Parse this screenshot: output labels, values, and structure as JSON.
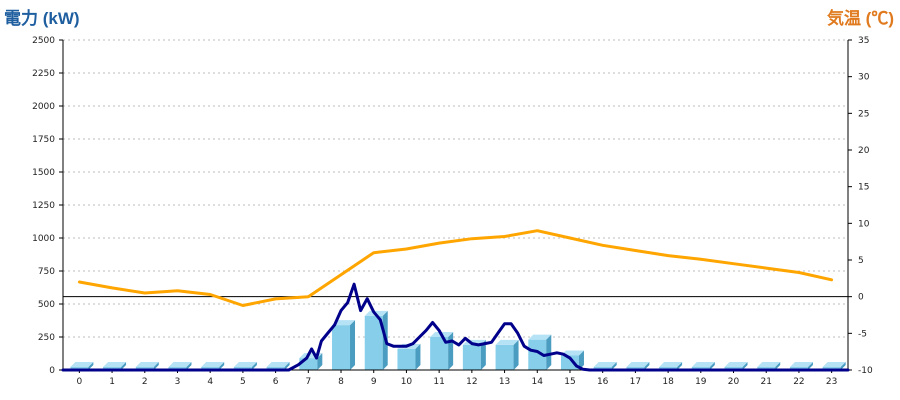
{
  "chart_data": {
    "type": "bar",
    "left_axis_label": "電力 (kW)",
    "right_axis_label": "気温 (℃)",
    "categories": [
      "0",
      "1",
      "2",
      "3",
      "4",
      "5",
      "6",
      "7",
      "8",
      "9",
      "10",
      "11",
      "12",
      "13",
      "14",
      "15",
      "16",
      "17",
      "18",
      "19",
      "20",
      "21",
      "22",
      "23"
    ],
    "ylim": [
      0,
      2500
    ],
    "yticks": [
      0,
      250,
      500,
      750,
      1000,
      1250,
      1500,
      1750,
      2000,
      2250,
      2500
    ],
    "y2lim": [
      -10,
      35
    ],
    "y2ticks": [
      -10,
      -5,
      0,
      5,
      10,
      15,
      20,
      25,
      30,
      35
    ],
    "grid": true,
    "colors": {
      "bar": "#87ceeb",
      "bar_side": "#4a9cc0",
      "bar_top": "#b5e2f5",
      "power_line": "#00008b",
      "temperature_line": "#ffa500",
      "zero_line": "#000000"
    },
    "series": [
      {
        "kind": "bar",
        "axis": "left",
        "values": [
          0,
          0,
          0,
          0,
          0,
          0,
          0,
          90,
          340,
          410,
          160,
          250,
          190,
          190,
          230,
          110,
          20,
          0,
          0,
          0,
          0,
          0,
          0,
          0
        ]
      },
      {
        "kind": "line",
        "axis": "left",
        "x": [
          6.4,
          6.7,
          6.95,
          7.1,
          7.25,
          7.4,
          7.6,
          7.8,
          8.0,
          8.2,
          8.4,
          8.6,
          8.8,
          9.0,
          9.2,
          9.4,
          9.6,
          9.8,
          10.0,
          10.2,
          10.4,
          10.6,
          10.8,
          11.0,
          11.2,
          11.4,
          11.6,
          11.8,
          12.0,
          12.2,
          12.4,
          12.6,
          12.8,
          13.0,
          13.2,
          13.4,
          13.6,
          13.8,
          14.0,
          14.2,
          14.4,
          14.6,
          14.8,
          15.0,
          15.2,
          15.4,
          15.6,
          15.8,
          16.0
        ],
        "values": [
          0,
          40,
          90,
          160,
          90,
          220,
          280,
          340,
          450,
          510,
          650,
          450,
          540,
          440,
          380,
          200,
          180,
          180,
          180,
          200,
          250,
          300,
          360,
          300,
          210,
          220,
          190,
          240,
          200,
          190,
          200,
          210,
          280,
          350,
          350,
          280,
          180,
          150,
          140,
          110,
          120,
          130,
          120,
          90,
          30,
          5,
          0,
          0,
          0
        ]
      },
      {
        "kind": "line",
        "axis": "right",
        "x": [
          0,
          1,
          2,
          3,
          4,
          5,
          6,
          7,
          8,
          9,
          10,
          11,
          12,
          13,
          14,
          15,
          16,
          17,
          18,
          19,
          20,
          21,
          22,
          23
        ],
        "values": [
          2,
          1.2,
          0.5,
          0.8,
          0.3,
          -1.2,
          -0.3,
          0,
          3,
          6,
          6.5,
          7.3,
          7.9,
          8.2,
          9,
          8,
          7,
          6.3,
          5.6,
          5.1,
          4.5,
          3.9,
          3.3,
          2.3
        ]
      }
    ]
  }
}
